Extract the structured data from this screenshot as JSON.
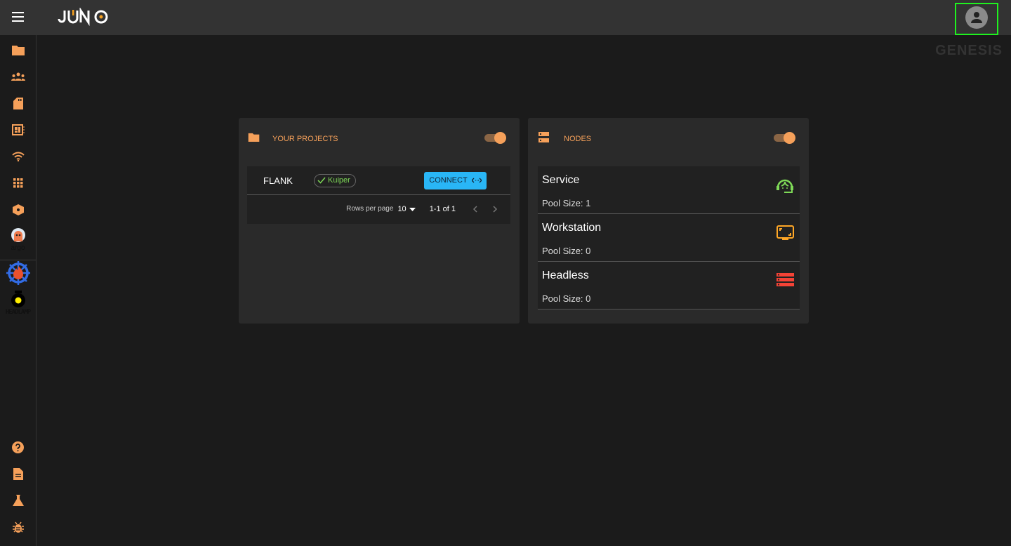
{
  "header": {
    "logo": "JUNO",
    "watermark": "GENESIS",
    "account_icon": "account-circle-icon"
  },
  "colors": {
    "accent": "#f5a05a",
    "connect": "#29b6f6",
    "service": "#7ed957",
    "workstation": "#ffa726",
    "headless": "#f44336",
    "highlight": "#1ff21f"
  },
  "sidebar": {
    "top_icons": [
      "folder-icon",
      "groups-icon",
      "sd-card-icon",
      "dashboard-chip-icon",
      "wifi-icon",
      "apps-grid-icon",
      "package-icon"
    ],
    "integrations": [
      {
        "name": "argo",
        "label": "argo"
      },
      {
        "name": "kubernetes-flame"
      },
      {
        "name": "headlamp",
        "label": "HEADLAMP"
      }
    ],
    "bottom_icons": [
      "help-icon",
      "document-icon",
      "flask-icon",
      "bug-icon"
    ]
  },
  "projects": {
    "title": "YOUR PROJECTS",
    "toggle_on": true,
    "rows": [
      {
        "name": "FLANK",
        "badge": "Kuiper",
        "action": "CONNECT"
      }
    ],
    "pagination": {
      "rows_per_page_label": "Rows per page",
      "rows_per_page": "10",
      "range": "1-1 of 1"
    }
  },
  "nodes": {
    "title": "NODES",
    "toggle_on": true,
    "items": [
      {
        "name": "Service",
        "pool": "Pool Size: 1",
        "icon": "support-agent-icon"
      },
      {
        "name": "Workstation",
        "pool": "Pool Size: 0",
        "icon": "monitor-icon"
      },
      {
        "name": "Headless",
        "pool": "Pool Size: 0",
        "icon": "server-icon"
      }
    ]
  }
}
